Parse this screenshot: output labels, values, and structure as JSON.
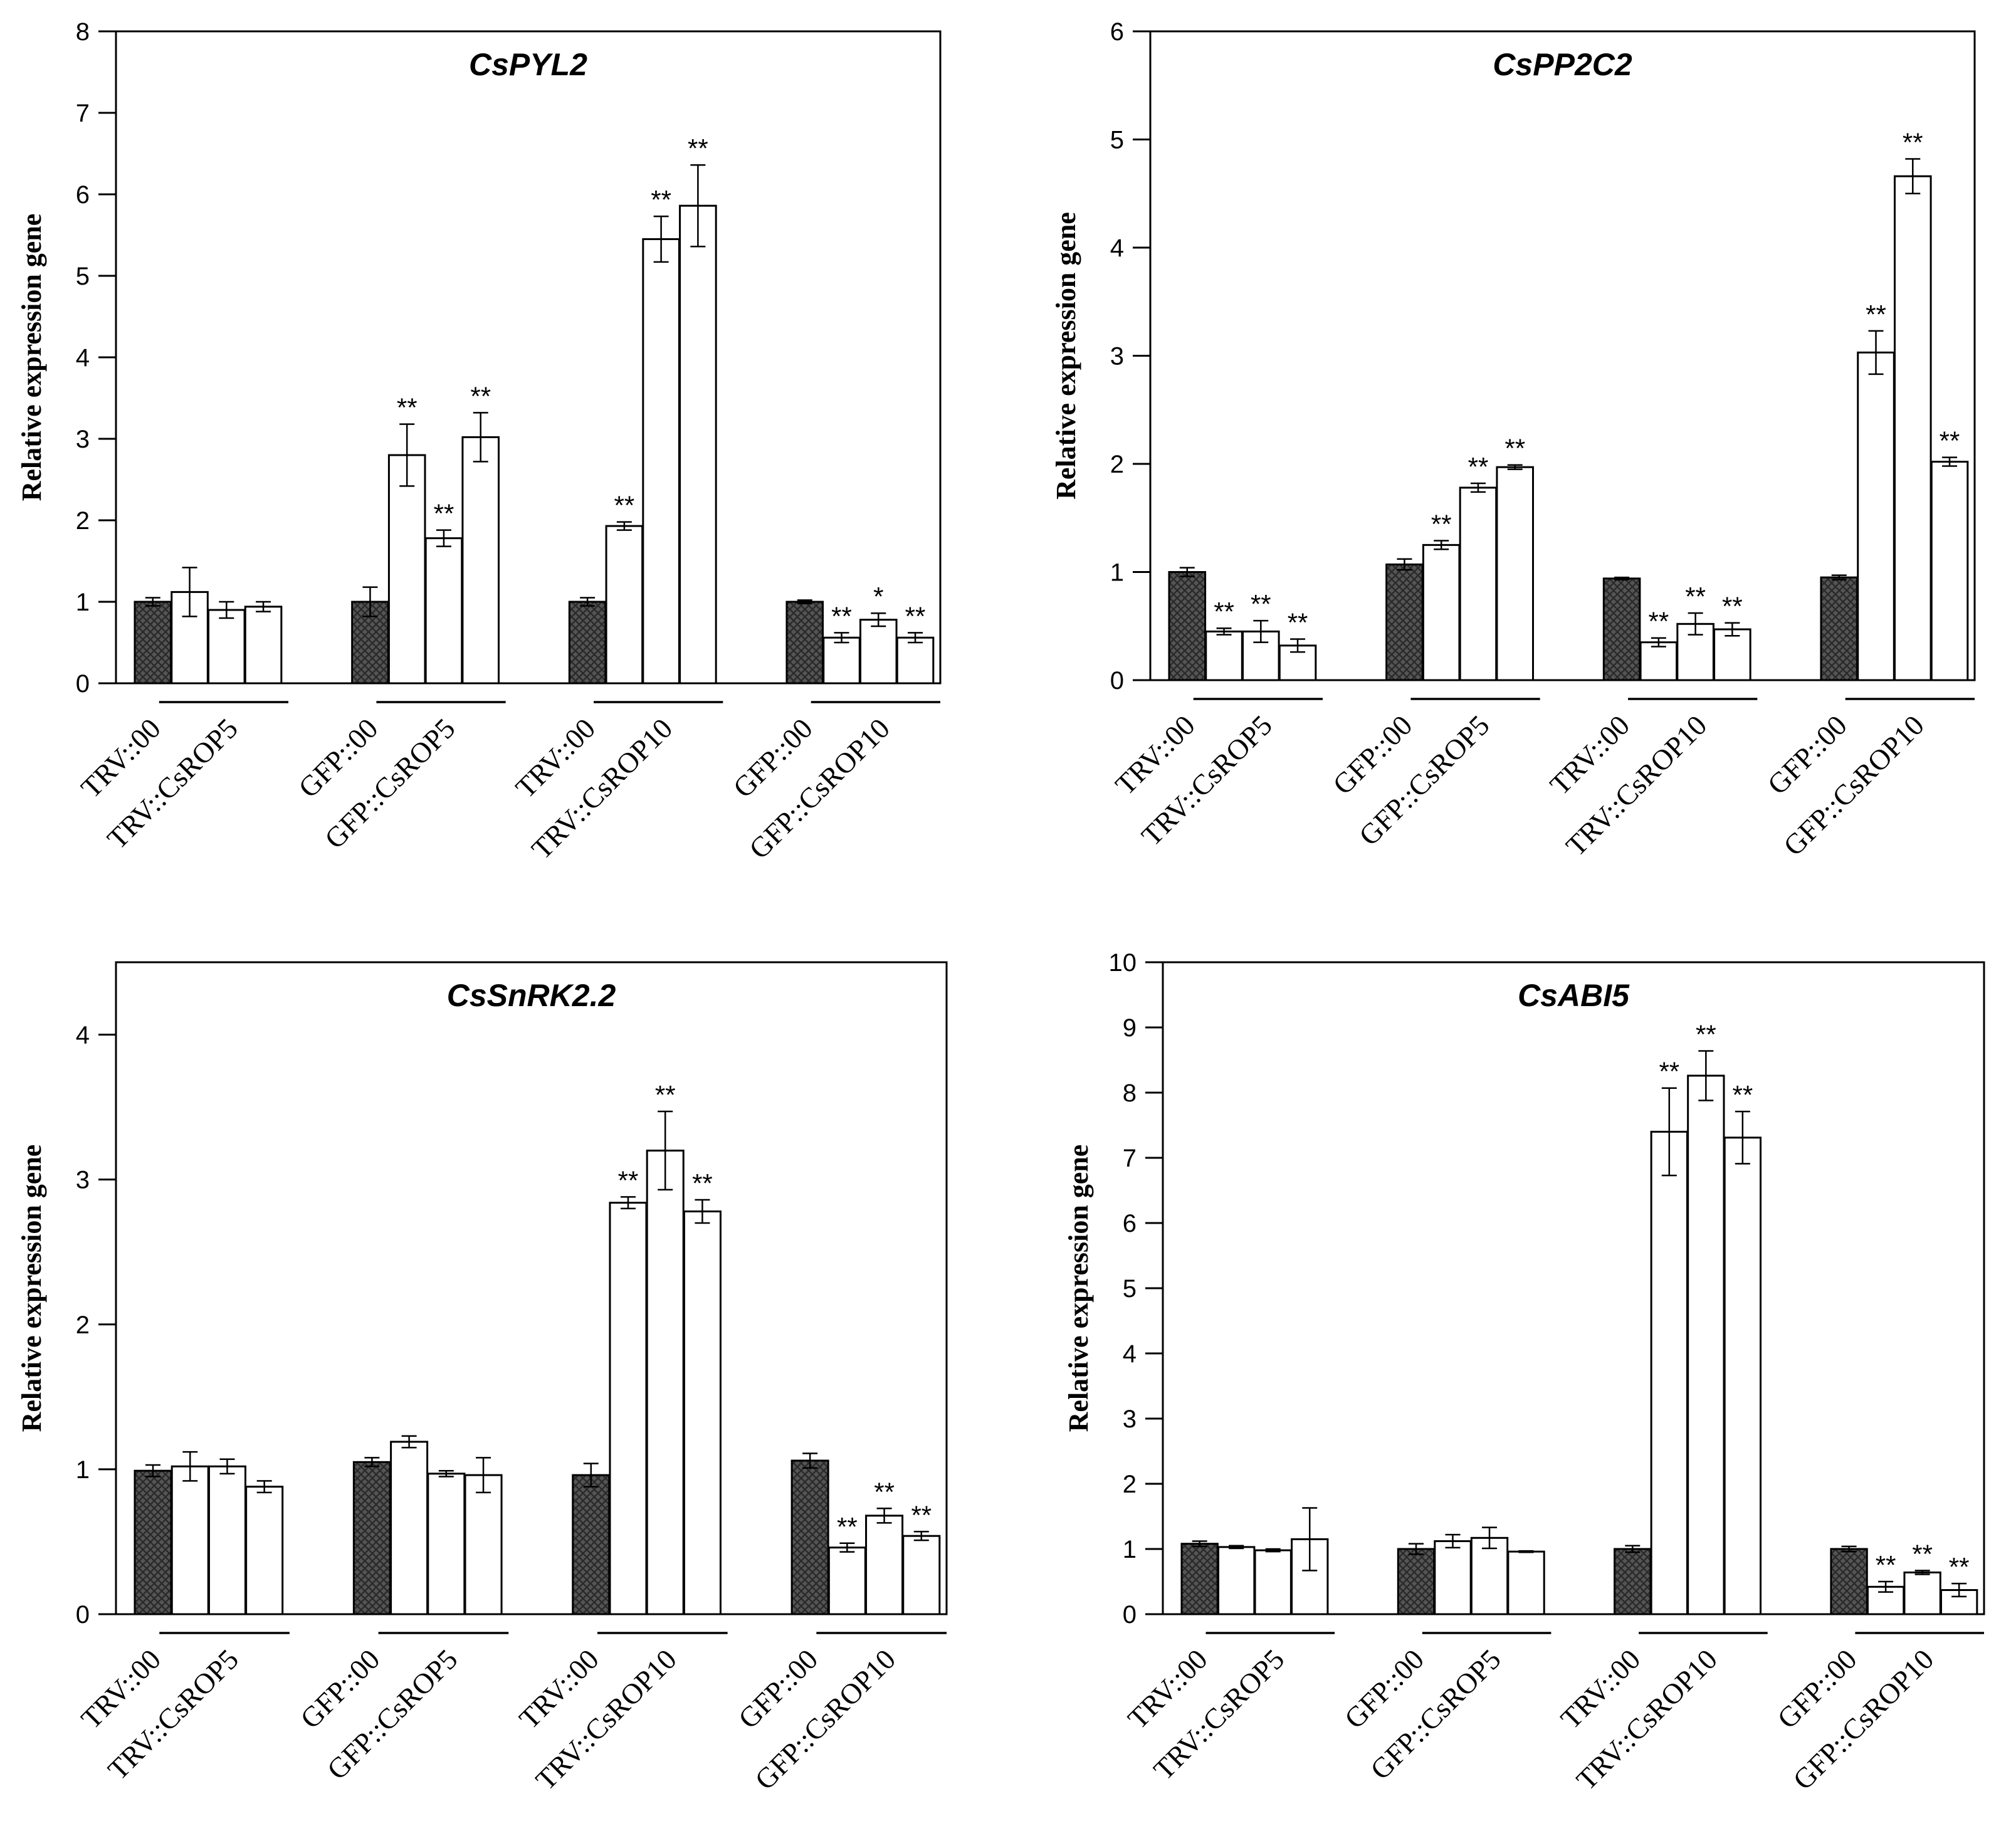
{
  "ylabel": "Relative expression gene",
  "colors": {
    "control": "#555555",
    "treatment": "#ffffff",
    "axis": "#000000"
  },
  "chart_data": [
    {
      "type": "bar",
      "title": "CsPYL2",
      "ylabel": "Relative expression gene",
      "ylim": [
        0,
        8
      ],
      "ticks": [
        0,
        1,
        2,
        3,
        4,
        5,
        6,
        7,
        8
      ],
      "groups": [
        {
          "labels": [
            "TRV::00",
            "TRV::CsROP5"
          ],
          "values": [
            1.0,
            1.12,
            0.9,
            0.94
          ],
          "errors": [
            0.05,
            0.3,
            0.1,
            0.06
          ],
          "sig": [
            "",
            "",
            "",
            ""
          ]
        },
        {
          "labels": [
            "GFP::00",
            "GFP::CsROP5"
          ],
          "values": [
            1.0,
            2.8,
            1.78,
            3.02
          ],
          "errors": [
            0.18,
            0.38,
            0.1,
            0.3
          ],
          "sig": [
            "",
            "**",
            "**",
            "**"
          ]
        },
        {
          "labels": [
            "TRV::00",
            "TRV::CsROP10"
          ],
          "values": [
            1.0,
            1.93,
            5.45,
            5.86
          ],
          "errors": [
            0.05,
            0.05,
            0.28,
            0.5
          ],
          "sig": [
            "",
            "**",
            "**",
            "**"
          ]
        },
        {
          "labels": [
            "GFP::00",
            "GFP::CsROP10"
          ],
          "values": [
            1.0,
            0.56,
            0.78,
            0.56
          ],
          "errors": [
            0.02,
            0.06,
            0.08,
            0.06
          ],
          "sig": [
            "",
            "**",
            "*",
            "**"
          ]
        }
      ]
    },
    {
      "type": "bar",
      "title": "CsPP2C2",
      "ylabel": "Relative expression gene",
      "ylim": [
        0,
        6
      ],
      "ticks": [
        0,
        1,
        2,
        3,
        4,
        5,
        6
      ],
      "groups": [
        {
          "labels": [
            "TRV::00",
            "TRV::CsROP5"
          ],
          "values": [
            1.0,
            0.45,
            0.45,
            0.32
          ],
          "errors": [
            0.04,
            0.03,
            0.1,
            0.06
          ],
          "sig": [
            "",
            "**",
            "**",
            "**"
          ]
        },
        {
          "labels": [
            "GFP::00",
            "GFP::CsROP5"
          ],
          "values": [
            1.07,
            1.25,
            1.78,
            1.97
          ],
          "errors": [
            0.05,
            0.04,
            0.04,
            0.02
          ],
          "sig": [
            "",
            "**",
            "**",
            "**"
          ]
        },
        {
          "labels": [
            "TRV::00",
            "TRV::CsROP10"
          ],
          "values": [
            0.94,
            0.35,
            0.52,
            0.47
          ],
          "errors": [
            0.01,
            0.04,
            0.1,
            0.06
          ],
          "sig": [
            "",
            "**",
            "**",
            "**"
          ]
        },
        {
          "labels": [
            "GFP::00",
            "GFP::CsROP10"
          ],
          "values": [
            0.95,
            3.03,
            4.66,
            2.02
          ],
          "errors": [
            0.02,
            0.2,
            0.16,
            0.04
          ],
          "sig": [
            "",
            "**",
            "**",
            "**"
          ]
        }
      ]
    },
    {
      "type": "bar",
      "title": "CsSnRK2.2",
      "ylabel": "Relative expression gene",
      "ylim": [
        0,
        4.5
      ],
      "ticks": [
        0,
        1,
        2,
        3,
        4
      ],
      "groups": [
        {
          "labels": [
            "TRV::00",
            "TRV::CsROP5"
          ],
          "values": [
            0.99,
            1.02,
            1.02,
            0.88
          ],
          "errors": [
            0.04,
            0.1,
            0.05,
            0.04
          ],
          "sig": [
            "",
            "",
            "",
            ""
          ]
        },
        {
          "labels": [
            "GFP::00",
            "GFP::CsROP5"
          ],
          "values": [
            1.05,
            1.19,
            0.97,
            0.96
          ],
          "errors": [
            0.03,
            0.04,
            0.02,
            0.12
          ],
          "sig": [
            "",
            "",
            "",
            ""
          ]
        },
        {
          "labels": [
            "TRV::00",
            "TRV::CsROP10"
          ],
          "values": [
            0.96,
            2.84,
            3.2,
            2.78
          ],
          "errors": [
            0.08,
            0.04,
            0.27,
            0.08
          ],
          "sig": [
            "",
            "**",
            "**",
            "**"
          ]
        },
        {
          "labels": [
            "GFP::00",
            "GFP::CsROP10"
          ],
          "values": [
            1.06,
            0.46,
            0.68,
            0.54
          ],
          "errors": [
            0.05,
            0.03,
            0.05,
            0.03
          ],
          "sig": [
            "",
            "**",
            "**",
            "**"
          ]
        }
      ]
    },
    {
      "type": "bar",
      "title": "CsABI5",
      "ylabel": "Relative expression gene",
      "ylim": [
        0,
        10
      ],
      "ticks": [
        0,
        1,
        2,
        3,
        4,
        5,
        6,
        7,
        8,
        9,
        10
      ],
      "groups": [
        {
          "labels": [
            "TRV::00",
            "TRV::CsROP5"
          ],
          "values": [
            1.08,
            1.03,
            0.98,
            1.15
          ],
          "errors": [
            0.04,
            0.02,
            0.02,
            0.48
          ],
          "sig": [
            "",
            "",
            "",
            ""
          ]
        },
        {
          "labels": [
            "GFP::00",
            "GFP::CsROP5"
          ],
          "values": [
            1.0,
            1.12,
            1.17,
            0.96
          ],
          "errors": [
            0.08,
            0.1,
            0.16,
            0.01
          ],
          "sig": [
            "",
            "",
            "",
            ""
          ]
        },
        {
          "labels": [
            "TRV::00",
            "TRV::CsROP10"
          ],
          "values": [
            1.0,
            7.4,
            8.26,
            7.31
          ],
          "errors": [
            0.05,
            0.67,
            0.38,
            0.4
          ],
          "sig": [
            "",
            "**",
            "**",
            "**"
          ]
        },
        {
          "labels": [
            "GFP::00",
            "GFP::CsROP10"
          ],
          "values": [
            1.0,
            0.42,
            0.64,
            0.37
          ],
          "errors": [
            0.04,
            0.08,
            0.03,
            0.1
          ],
          "sig": [
            "",
            "**",
            "**",
            "**"
          ]
        }
      ]
    }
  ]
}
